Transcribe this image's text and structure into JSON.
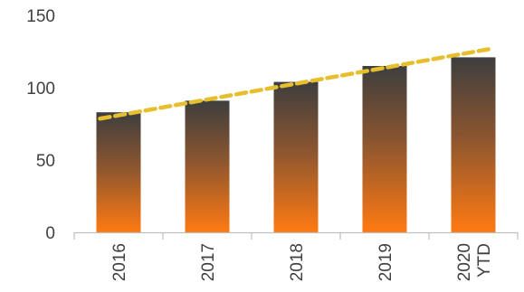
{
  "chart_data": {
    "type": "bar",
    "categories": [
      "2016",
      "2017",
      "2018",
      "2019",
      "2020 YTD"
    ],
    "series": [
      {
        "values": [
          83,
          91,
          104,
          115,
          121
        ]
      }
    ],
    "trendline": {
      "type": "linear",
      "style": "dashed",
      "color": "#E6BE2E"
    },
    "bar_gradient": {
      "top": "#3E3E3E",
      "bottom": "#FF7A12"
    },
    "y_ticks": [
      0,
      50,
      100,
      150
    ],
    "ylim": [
      0,
      150
    ],
    "grid": false,
    "legend": "none",
    "title": "",
    "xlabel": "",
    "ylabel": ""
  }
}
